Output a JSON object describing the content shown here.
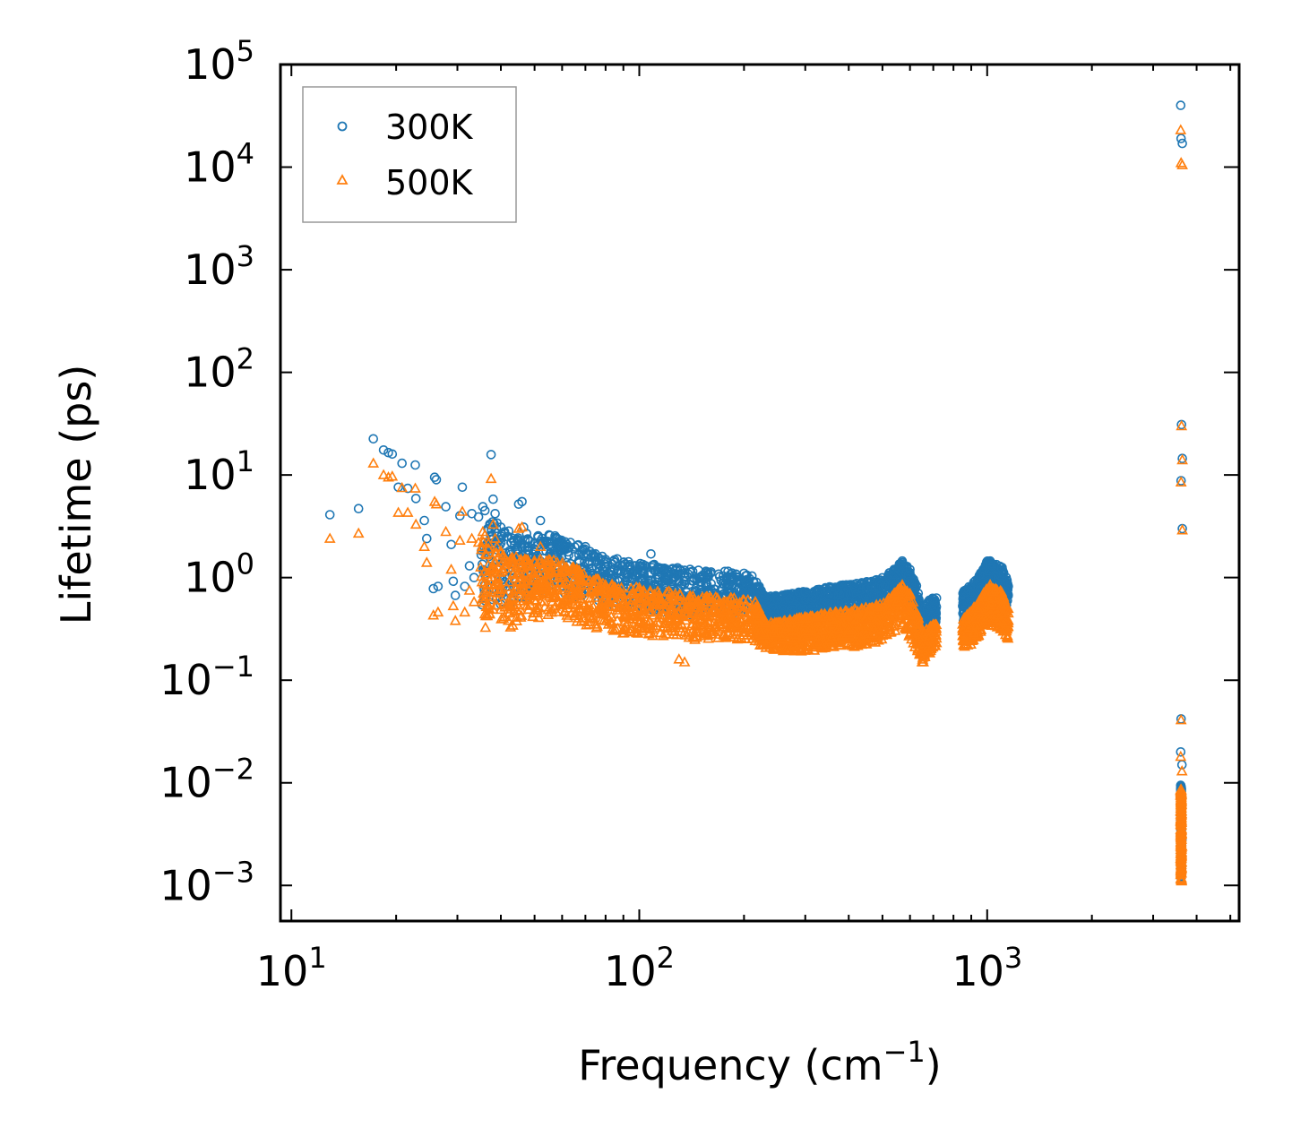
{
  "chart_data": {
    "type": "scatter",
    "title": "",
    "xlabel": "Frequency (cm",
    "xlabel_exp": "−1",
    "xlabel_close": ")",
    "ylabel": "Lifetime (ps)",
    "xscale": "log",
    "yscale": "log",
    "xlim": [
      9.3,
      5300
    ],
    "ylim": [
      0.00045,
      100000
    ],
    "legend_position": "top-left",
    "x_ticks": [
      {
        "value": 10,
        "base": "10",
        "exp": "1"
      },
      {
        "value": 100,
        "base": "10",
        "exp": "2"
      },
      {
        "value": 1000,
        "base": "10",
        "exp": "3"
      }
    ],
    "y_ticks": [
      {
        "value": 0.001,
        "base": "10",
        "exp": "−3"
      },
      {
        "value": 0.01,
        "base": "10",
        "exp": "−2"
      },
      {
        "value": 0.1,
        "base": "10",
        "exp": "−1"
      },
      {
        "value": 1,
        "base": "10",
        "exp": "0"
      },
      {
        "value": 10,
        "base": "10",
        "exp": "1"
      },
      {
        "value": 100,
        "base": "10",
        "exp": "2"
      },
      {
        "value": 1000,
        "base": "10",
        "exp": "3"
      },
      {
        "value": 10000,
        "base": "10",
        "exp": "4"
      },
      {
        "value": 100000,
        "base": "10",
        "exp": "5"
      }
    ],
    "series": [
      {
        "name": "300K",
        "marker": "circle",
        "color": "#1f77b4",
        "points": [
          [
            12.9,
            4.1
          ],
          [
            15.6,
            4.7
          ],
          [
            17.2,
            22.5
          ],
          [
            18.4,
            17.5
          ],
          [
            19.0,
            16.5
          ],
          [
            19.5,
            16.0
          ],
          [
            20.3,
            7.6
          ],
          [
            20.8,
            13.0
          ],
          [
            21.6,
            7.4
          ],
          [
            22.7,
            12.5
          ],
          [
            22.8,
            5.9
          ],
          [
            24.1,
            3.6
          ],
          [
            24.5,
            2.4
          ],
          [
            25.6,
            0.78
          ],
          [
            25.8,
            9.5
          ],
          [
            26.1,
            9.0
          ],
          [
            26.4,
            0.82
          ],
          [
            27.8,
            4.9
          ],
          [
            28.8,
            2.1
          ],
          [
            29.2,
            0.92
          ],
          [
            29.6,
            0.67
          ],
          [
            30.5,
            4.0
          ],
          [
            31.0,
            7.6
          ],
          [
            31.5,
            0.82
          ],
          [
            32.5,
            1.3
          ],
          [
            33.0,
            4.2
          ],
          [
            33.5,
            1.0
          ],
          [
            34.5,
            3.9
          ],
          [
            35.5,
            4.9
          ],
          [
            36.0,
            4.5
          ],
          [
            37.5,
            15.8
          ],
          [
            38.0,
            5.8
          ],
          [
            38.5,
            4.2
          ],
          [
            39.0,
            3.4
          ],
          [
            40.0,
            3.1
          ],
          [
            41.0,
            2.8
          ],
          [
            42.0,
            2.5
          ],
          [
            45.0,
            5.2
          ],
          [
            46.0,
            5.5
          ],
          [
            46.5,
            3.1
          ],
          [
            48.0,
            2.3
          ],
          [
            50.0,
            1.9
          ],
          [
            52.0,
            3.6
          ],
          [
            55.0,
            2.6
          ],
          [
            58.0,
            2.4
          ],
          [
            62.0,
            2.1
          ],
          [
            65.0,
            1.6
          ],
          [
            70.0,
            2.0
          ],
          [
            80.0,
            1.5
          ],
          [
            90.0,
            1.4
          ],
          [
            100.0,
            1.3
          ],
          [
            108.0,
            1.7
          ],
          [
            120.0,
            1.2
          ],
          [
            140.0,
            1.2
          ],
          [
            160.0,
            1.1
          ],
          [
            180.0,
            1.15
          ],
          [
            200.0,
            1.1
          ],
          [
            230.0,
            0.65
          ],
          [
            300.0,
            0.72
          ],
          [
            380.0,
            0.82
          ],
          [
            460.0,
            0.9
          ],
          [
            540.0,
            1.2
          ],
          [
            570.0,
            1.45
          ],
          [
            600.0,
            1.2
          ],
          [
            640.0,
            0.32
          ],
          [
            700.0,
            0.62
          ],
          [
            870.0,
            0.72
          ],
          [
            950.0,
            1.05
          ],
          [
            1020.0,
            1.45
          ],
          [
            1100.0,
            1.25
          ],
          [
            1150.0,
            0.82
          ],
          [
            3600,
            40000
          ],
          [
            3610,
            19000
          ],
          [
            3640,
            17000
          ],
          [
            3620,
            31
          ],
          [
            3640,
            14.5
          ],
          [
            3610,
            8.8
          ],
          [
            3640,
            3.0
          ],
          [
            3610,
            0.042
          ],
          [
            3600,
            0.02
          ],
          [
            3630,
            0.015
          ],
          [
            3610,
            0.009
          ],
          [
            3620,
            0.006
          ],
          [
            3600,
            0.004
          ],
          [
            3630,
            0.0028
          ],
          [
            3610,
            0.0018
          ],
          [
            3620,
            0.0013
          ]
        ],
        "bands": [
          [
            35,
            0.5,
            4.5
          ],
          [
            40,
            0.5,
            3.0
          ],
          [
            45,
            0.6,
            2.8
          ],
          [
            50,
            0.65,
            2.6
          ],
          [
            55,
            0.75,
            2.7
          ],
          [
            60,
            0.7,
            2.4
          ],
          [
            70,
            0.6,
            2.0
          ],
          [
            80,
            0.55,
            1.6
          ],
          [
            90,
            0.5,
            1.5
          ],
          [
            100,
            0.5,
            1.4
          ],
          [
            120,
            0.45,
            1.3
          ],
          [
            140,
            0.42,
            1.2
          ],
          [
            160,
            0.45,
            1.15
          ],
          [
            180,
            0.45,
            1.15
          ],
          [
            200,
            0.43,
            1.1
          ],
          [
            215,
            0.42,
            1.05
          ],
          [
            230,
            0.35,
            0.66
          ],
          [
            260,
            0.33,
            0.68
          ],
          [
            300,
            0.34,
            0.74
          ],
          [
            340,
            0.36,
            0.8
          ],
          [
            380,
            0.38,
            0.84
          ],
          [
            420,
            0.38,
            0.88
          ],
          [
            460,
            0.4,
            0.92
          ],
          [
            500,
            0.45,
            1.0
          ],
          [
            540,
            0.55,
            1.2
          ],
          [
            570,
            0.6,
            1.45
          ],
          [
            600,
            0.45,
            1.2
          ],
          [
            630,
            0.33,
            0.8
          ],
          [
            650,
            0.25,
            0.5
          ],
          [
            680,
            0.3,
            0.6
          ],
          [
            710,
            0.35,
            0.65
          ],
          [
            850,
            0.35,
            0.72
          ],
          [
            900,
            0.4,
            0.85
          ],
          [
            950,
            0.5,
            1.05
          ],
          [
            1000,
            0.6,
            1.45
          ],
          [
            1050,
            0.6,
            1.4
          ],
          [
            1100,
            0.55,
            1.3
          ],
          [
            1150,
            0.45,
            0.9
          ],
          [
            3600,
            0.0012,
            0.0095
          ],
          [
            3620,
            0.0012,
            0.009
          ]
        ]
      },
      {
        "name": "500K",
        "marker": "triangle",
        "color": "#ff7f0e",
        "points": [
          [
            12.9,
            2.4
          ],
          [
            15.6,
            2.7
          ],
          [
            17.2,
            13.0
          ],
          [
            18.4,
            10.0
          ],
          [
            19.0,
            9.5
          ],
          [
            19.5,
            9.7
          ],
          [
            20.3,
            4.3
          ],
          [
            20.8,
            7.5
          ],
          [
            21.6,
            4.3
          ],
          [
            22.7,
            7.4
          ],
          [
            22.8,
            3.3
          ],
          [
            24.1,
            2.0
          ],
          [
            24.5,
            1.4
          ],
          [
            25.6,
            0.43
          ],
          [
            25.8,
            5.5
          ],
          [
            26.1,
            5.2
          ],
          [
            26.4,
            0.46
          ],
          [
            27.8,
            2.8
          ],
          [
            28.8,
            1.2
          ],
          [
            29.2,
            0.53
          ],
          [
            29.6,
            0.38
          ],
          [
            30.5,
            2.3
          ],
          [
            31.0,
            4.4
          ],
          [
            31.5,
            0.46
          ],
          [
            32.5,
            0.75
          ],
          [
            33.0,
            2.4
          ],
          [
            33.5,
            0.58
          ],
          [
            34.5,
            2.2
          ],
          [
            35.5,
            2.8
          ],
          [
            36.0,
            2.6
          ],
          [
            37.5,
            9.2
          ],
          [
            38.0,
            3.3
          ],
          [
            38.5,
            2.4
          ],
          [
            39.0,
            2.0
          ],
          [
            40.0,
            1.8
          ],
          [
            45.0,
            3.0
          ],
          [
            46.0,
            3.1
          ],
          [
            48.0,
            1.3
          ],
          [
            50.0,
            1.1
          ],
          [
            52.0,
            2.0
          ],
          [
            55.0,
            1.5
          ],
          [
            60.0,
            1.3
          ],
          [
            80.0,
            0.85
          ],
          [
            100.0,
            0.8
          ],
          [
            120.0,
            0.72
          ],
          [
            130.0,
            0.16
          ],
          [
            135.0,
            0.15
          ],
          [
            160.0,
            0.65
          ],
          [
            200.0,
            0.6
          ],
          [
            230.0,
            0.36
          ],
          [
            300.0,
            0.4
          ],
          [
            380.0,
            0.45
          ],
          [
            460.0,
            0.5
          ],
          [
            540.0,
            0.7
          ],
          [
            570.0,
            0.85
          ],
          [
            600.0,
            0.7
          ],
          [
            640.0,
            0.18
          ],
          [
            650.0,
            0.15
          ],
          [
            700.0,
            0.35
          ],
          [
            870.0,
            0.4
          ],
          [
            950.0,
            0.6
          ],
          [
            1020.0,
            0.85
          ],
          [
            1100.0,
            0.72
          ],
          [
            1150.0,
            0.45
          ],
          [
            3600,
            23000
          ],
          [
            3610,
            11000
          ],
          [
            3640,
            10500
          ],
          [
            3620,
            30
          ],
          [
            3640,
            14
          ],
          [
            3610,
            8.5
          ],
          [
            3640,
            2.9
          ],
          [
            3610,
            0.041
          ],
          [
            3600,
            0.018
          ],
          [
            3630,
            0.013
          ],
          [
            3610,
            0.008
          ],
          [
            3620,
            0.005
          ],
          [
            3600,
            0.0035
          ],
          [
            3630,
            0.0024
          ],
          [
            3610,
            0.0016
          ],
          [
            3620,
            0.0011
          ]
        ],
        "bands": [
          [
            35,
            0.3,
            2.6
          ],
          [
            40,
            0.3,
            1.8
          ],
          [
            45,
            0.34,
            1.6
          ],
          [
            50,
            0.36,
            1.5
          ],
          [
            55,
            0.42,
            1.55
          ],
          [
            60,
            0.4,
            1.4
          ],
          [
            70,
            0.33,
            1.15
          ],
          [
            80,
            0.3,
            0.9
          ],
          [
            90,
            0.28,
            0.85
          ],
          [
            100,
            0.28,
            0.8
          ],
          [
            120,
            0.25,
            0.75
          ],
          [
            140,
            0.23,
            0.68
          ],
          [
            160,
            0.25,
            0.65
          ],
          [
            180,
            0.25,
            0.65
          ],
          [
            200,
            0.24,
            0.62
          ],
          [
            215,
            0.23,
            0.6
          ],
          [
            230,
            0.2,
            0.38
          ],
          [
            260,
            0.19,
            0.38
          ],
          [
            300,
            0.19,
            0.42
          ],
          [
            340,
            0.2,
            0.45
          ],
          [
            380,
            0.21,
            0.47
          ],
          [
            420,
            0.21,
            0.5
          ],
          [
            460,
            0.22,
            0.52
          ],
          [
            500,
            0.25,
            0.57
          ],
          [
            540,
            0.3,
            0.7
          ],
          [
            570,
            0.33,
            0.85
          ],
          [
            600,
            0.25,
            0.7
          ],
          [
            630,
            0.19,
            0.45
          ],
          [
            650,
            0.14,
            0.28
          ],
          [
            680,
            0.17,
            0.34
          ],
          [
            710,
            0.2,
            0.37
          ],
          [
            850,
            0.2,
            0.4
          ],
          [
            900,
            0.22,
            0.48
          ],
          [
            950,
            0.28,
            0.6
          ],
          [
            1000,
            0.34,
            0.82
          ],
          [
            1050,
            0.34,
            0.8
          ],
          [
            1100,
            0.31,
            0.74
          ],
          [
            1150,
            0.25,
            0.5
          ],
          [
            3600,
            0.0011,
            0.009
          ],
          [
            3620,
            0.0011,
            0.0085
          ]
        ]
      }
    ]
  }
}
